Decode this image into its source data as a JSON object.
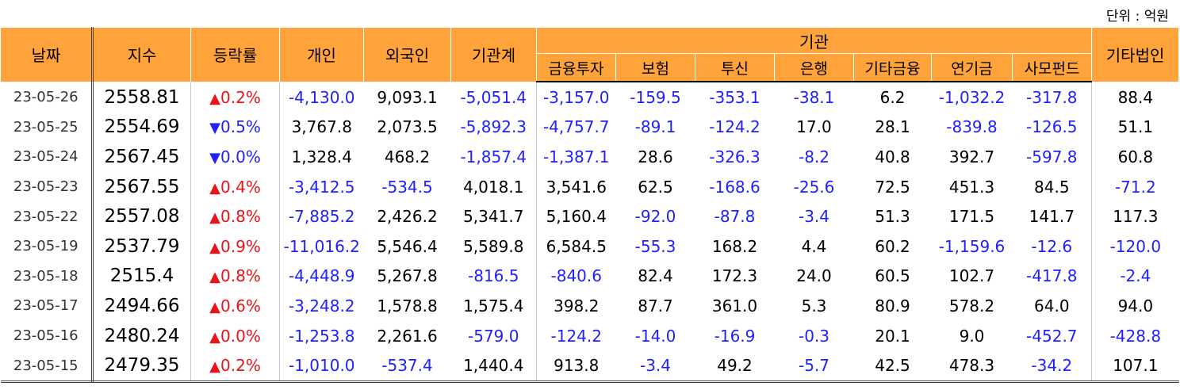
{
  "unit_label": "단위 : 억원",
  "headers": {
    "date": "날짜",
    "index": "지수",
    "change": "등락률",
    "individual": "개인",
    "foreign": "외국인",
    "institution_total": "기관계",
    "institution": "기관",
    "other_corp": "기타법인",
    "sub": [
      "금융투자",
      "보험",
      "투신",
      "은행",
      "기타금융",
      "연기금",
      "사모펀드"
    ]
  },
  "colors": {
    "header_bg": "#ffa33a",
    "negative": "#1f1fff",
    "up": "#e8141a",
    "down": "#1f1fff"
  },
  "rows": [
    {
      "date": "23-05-26",
      "index": "2558.81",
      "dir": "up",
      "change": "0.2%",
      "individual": "-4,130.0",
      "foreign": "9,093.1",
      "inst_total": "-5,051.4",
      "fin_invest": "-3,157.0",
      "insurance": "-159.5",
      "trust": "-353.1",
      "bank": "-38.1",
      "other_fin": "6.2",
      "pension": "-1,032.2",
      "private_fund": "-317.8",
      "other_corp": "88.4"
    },
    {
      "date": "23-05-25",
      "index": "2554.69",
      "dir": "down",
      "change": "0.5%",
      "individual": "3,767.8",
      "foreign": "2,073.5",
      "inst_total": "-5,892.3",
      "fin_invest": "-4,757.7",
      "insurance": "-89.1",
      "trust": "-124.2",
      "bank": "17.0",
      "other_fin": "28.1",
      "pension": "-839.8",
      "private_fund": "-126.5",
      "other_corp": "51.1"
    },
    {
      "date": "23-05-24",
      "index": "2567.45",
      "dir": "down",
      "change": "0.0%",
      "individual": "1,328.4",
      "foreign": "468.2",
      "inst_total": "-1,857.4",
      "fin_invest": "-1,387.1",
      "insurance": "28.6",
      "trust": "-326.3",
      "bank": "-8.2",
      "other_fin": "40.8",
      "pension": "392.7",
      "private_fund": "-597.8",
      "other_corp": "60.8"
    },
    {
      "date": "23-05-23",
      "index": "2567.55",
      "dir": "up",
      "change": "0.4%",
      "individual": "-3,412.5",
      "foreign": "-534.5",
      "inst_total": "4,018.1",
      "fin_invest": "3,541.6",
      "insurance": "62.5",
      "trust": "-168.6",
      "bank": "-25.6",
      "other_fin": "72.5",
      "pension": "451.3",
      "private_fund": "84.5",
      "other_corp": "-71.2"
    },
    {
      "date": "23-05-22",
      "index": "2557.08",
      "dir": "up",
      "change": "0.8%",
      "individual": "-7,885.2",
      "foreign": "2,426.2",
      "inst_total": "5,341.7",
      "fin_invest": "5,160.4",
      "insurance": "-92.0",
      "trust": "-87.8",
      "bank": "-3.4",
      "other_fin": "51.3",
      "pension": "171.5",
      "private_fund": "141.7",
      "other_corp": "117.3"
    },
    {
      "date": "23-05-19",
      "index": "2537.79",
      "dir": "up",
      "change": "0.9%",
      "individual": "-11,016.2",
      "foreign": "5,546.4",
      "inst_total": "5,589.8",
      "fin_invest": "6,584.5",
      "insurance": "-55.3",
      "trust": "168.2",
      "bank": "4.4",
      "other_fin": "60.2",
      "pension": "-1,159.6",
      "private_fund": "-12.6",
      "other_corp": "-120.0"
    },
    {
      "date": "23-05-18",
      "index": "2515.4",
      "dir": "up",
      "change": "0.8%",
      "individual": "-4,448.9",
      "foreign": "5,267.8",
      "inst_total": "-816.5",
      "fin_invest": "-840.6",
      "insurance": "82.4",
      "trust": "172.3",
      "bank": "24.0",
      "other_fin": "60.5",
      "pension": "102.7",
      "private_fund": "-417.8",
      "other_corp": "-2.4"
    },
    {
      "date": "23-05-17",
      "index": "2494.66",
      "dir": "up",
      "change": "0.6%",
      "individual": "-3,248.2",
      "foreign": "1,578.8",
      "inst_total": "1,575.4",
      "fin_invest": "398.2",
      "insurance": "87.7",
      "trust": "361.0",
      "bank": "5.3",
      "other_fin": "80.9",
      "pension": "578.2",
      "private_fund": "64.0",
      "other_corp": "94.0"
    },
    {
      "date": "23-05-16",
      "index": "2480.24",
      "dir": "up",
      "change": "0.0%",
      "individual": "-1,253.8",
      "foreign": "2,261.6",
      "inst_total": "-579.0",
      "fin_invest": "-124.2",
      "insurance": "-14.0",
      "trust": "-16.9",
      "bank": "-0.3",
      "other_fin": "20.1",
      "pension": "9.0",
      "private_fund": "-452.7",
      "other_corp": "-428.8"
    },
    {
      "date": "23-05-15",
      "index": "2479.35",
      "dir": "up",
      "change": "0.2%",
      "individual": "-1,010.0",
      "foreign": "-537.4",
      "inst_total": "1,440.4",
      "fin_invest": "913.8",
      "insurance": "-3.4",
      "trust": "49.2",
      "bank": "-5.7",
      "other_fin": "42.5",
      "pension": "478.3",
      "private_fund": "-34.2",
      "other_corp": "107.1"
    }
  ]
}
